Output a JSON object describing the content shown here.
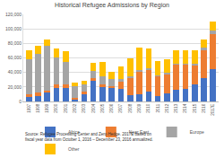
{
  "chart_data": {
    "type": "bar",
    "title": "Historical Refugee Admissions by Region",
    "categories": [
      "1997",
      "1998",
      "1999",
      "2000",
      "2001",
      "2002",
      "2003",
      "2004",
      "2005",
      "2006",
      "2007",
      "2008",
      "2009",
      "2010",
      "2011",
      "2012",
      "2013",
      "2014",
      "2015",
      "2016",
      "2017E"
    ],
    "series": [
      {
        "name": "Africa",
        "color": "#4472c4",
        "values": [
          6000,
          7000,
          13000,
          18000,
          19000,
          2500,
          10000,
          29000,
          20000,
          18000,
          17000,
          9000,
          10000,
          14000,
          8000,
          11000,
          16000,
          17000,
          23000,
          32000,
          45000
        ]
      },
      {
        "name": "Near East",
        "color": "#ed7d31",
        "values": [
          4000,
          5000,
          2000,
          5000,
          4000,
          3000,
          3000,
          3000,
          4000,
          3000,
          10000,
          23000,
          32000,
          30000,
          27000,
          27000,
          35000,
          34000,
          27000,
          38000,
          48000
        ]
      },
      {
        "name": "Europe",
        "color": "#a5a5a5",
        "values": [
          48000,
          54000,
          62000,
          38000,
          32000,
          16000,
          11000,
          10000,
          11000,
          10000,
          4000,
          3000,
          1500,
          1500,
          1000,
          1000,
          1000,
          1000,
          2000,
          4000,
          5000
        ]
      },
      {
        "name": "Other",
        "color": "#ffc000",
        "values": [
          12000,
          11000,
          8000,
          12000,
          14000,
          5000,
          4000,
          11000,
          19000,
          10000,
          17000,
          25000,
          31000,
          28000,
          20000,
          19000,
          18000,
          18000,
          18000,
          11000,
          12000
        ]
      }
    ],
    "stacked": true,
    "ylim": [
      0,
      120000
    ],
    "yticks": [
      0,
      {
        "value": 20000,
        "label": "20,000"
      },
      {
        "value": 40000,
        "label": "40,000"
      },
      {
        "value": 60000,
        "label": "60,000"
      },
      {
        "value": 80000,
        "label": "80,000"
      },
      {
        "value": 100000,
        "label": "100,000"
      },
      {
        "value": 120000,
        "label": "120,000"
      }
    ],
    "grid": true,
    "legend": "bottom",
    "annotations": [
      "Source: Refugee Processing Center and Zero Hedge. 2017E based on",
      "fiscal year data from October 1, 2016 – December 23, 2016 annualized."
    ]
  }
}
